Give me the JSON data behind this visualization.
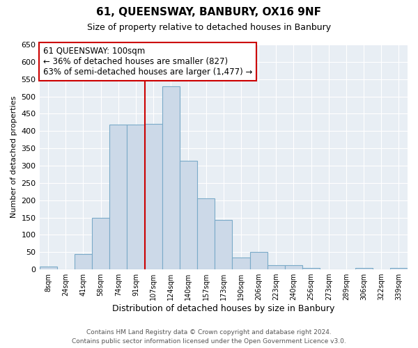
{
  "title": "61, QUEENSWAY, BANBURY, OX16 9NF",
  "subtitle": "Size of property relative to detached houses in Banbury",
  "xlabel": "Distribution of detached houses by size in Banbury",
  "ylabel": "Number of detached properties",
  "bar_labels": [
    "8sqm",
    "24sqm",
    "41sqm",
    "58sqm",
    "74sqm",
    "91sqm",
    "107sqm",
    "124sqm",
    "140sqm",
    "157sqm",
    "173sqm",
    "190sqm",
    "206sqm",
    "223sqm",
    "240sqm",
    "256sqm",
    "273sqm",
    "289sqm",
    "306sqm",
    "322sqm",
    "339sqm"
  ],
  "bar_values": [
    8,
    0,
    45,
    150,
    418,
    418,
    420,
    530,
    315,
    205,
    143,
    35,
    50,
    13,
    12,
    5,
    0,
    0,
    5,
    0,
    5
  ],
  "bar_color": "#ccd9e8",
  "bar_edge_color": "#7aaac8",
  "vline_color": "#cc0000",
  "vline_x_index": 6,
  "annotation_title": "61 QUEENSWAY: 100sqm",
  "annotation_line1": "← 36% of detached houses are smaller (827)",
  "annotation_line2": "63% of semi-detached houses are larger (1,477) →",
  "annotation_box_color": "#ffffff",
  "annotation_box_edge": "#cc0000",
  "ylim": [
    0,
    650
  ],
  "yticks": [
    0,
    50,
    100,
    150,
    200,
    250,
    300,
    350,
    400,
    450,
    500,
    550,
    600,
    650
  ],
  "footer_line1": "Contains HM Land Registry data © Crown copyright and database right 2024.",
  "footer_line2": "Contains public sector information licensed under the Open Government Licence v3.0.",
  "plot_bg_color": "#e8eef4",
  "fig_bg_color": "#ffffff",
  "grid_color": "#ffffff"
}
